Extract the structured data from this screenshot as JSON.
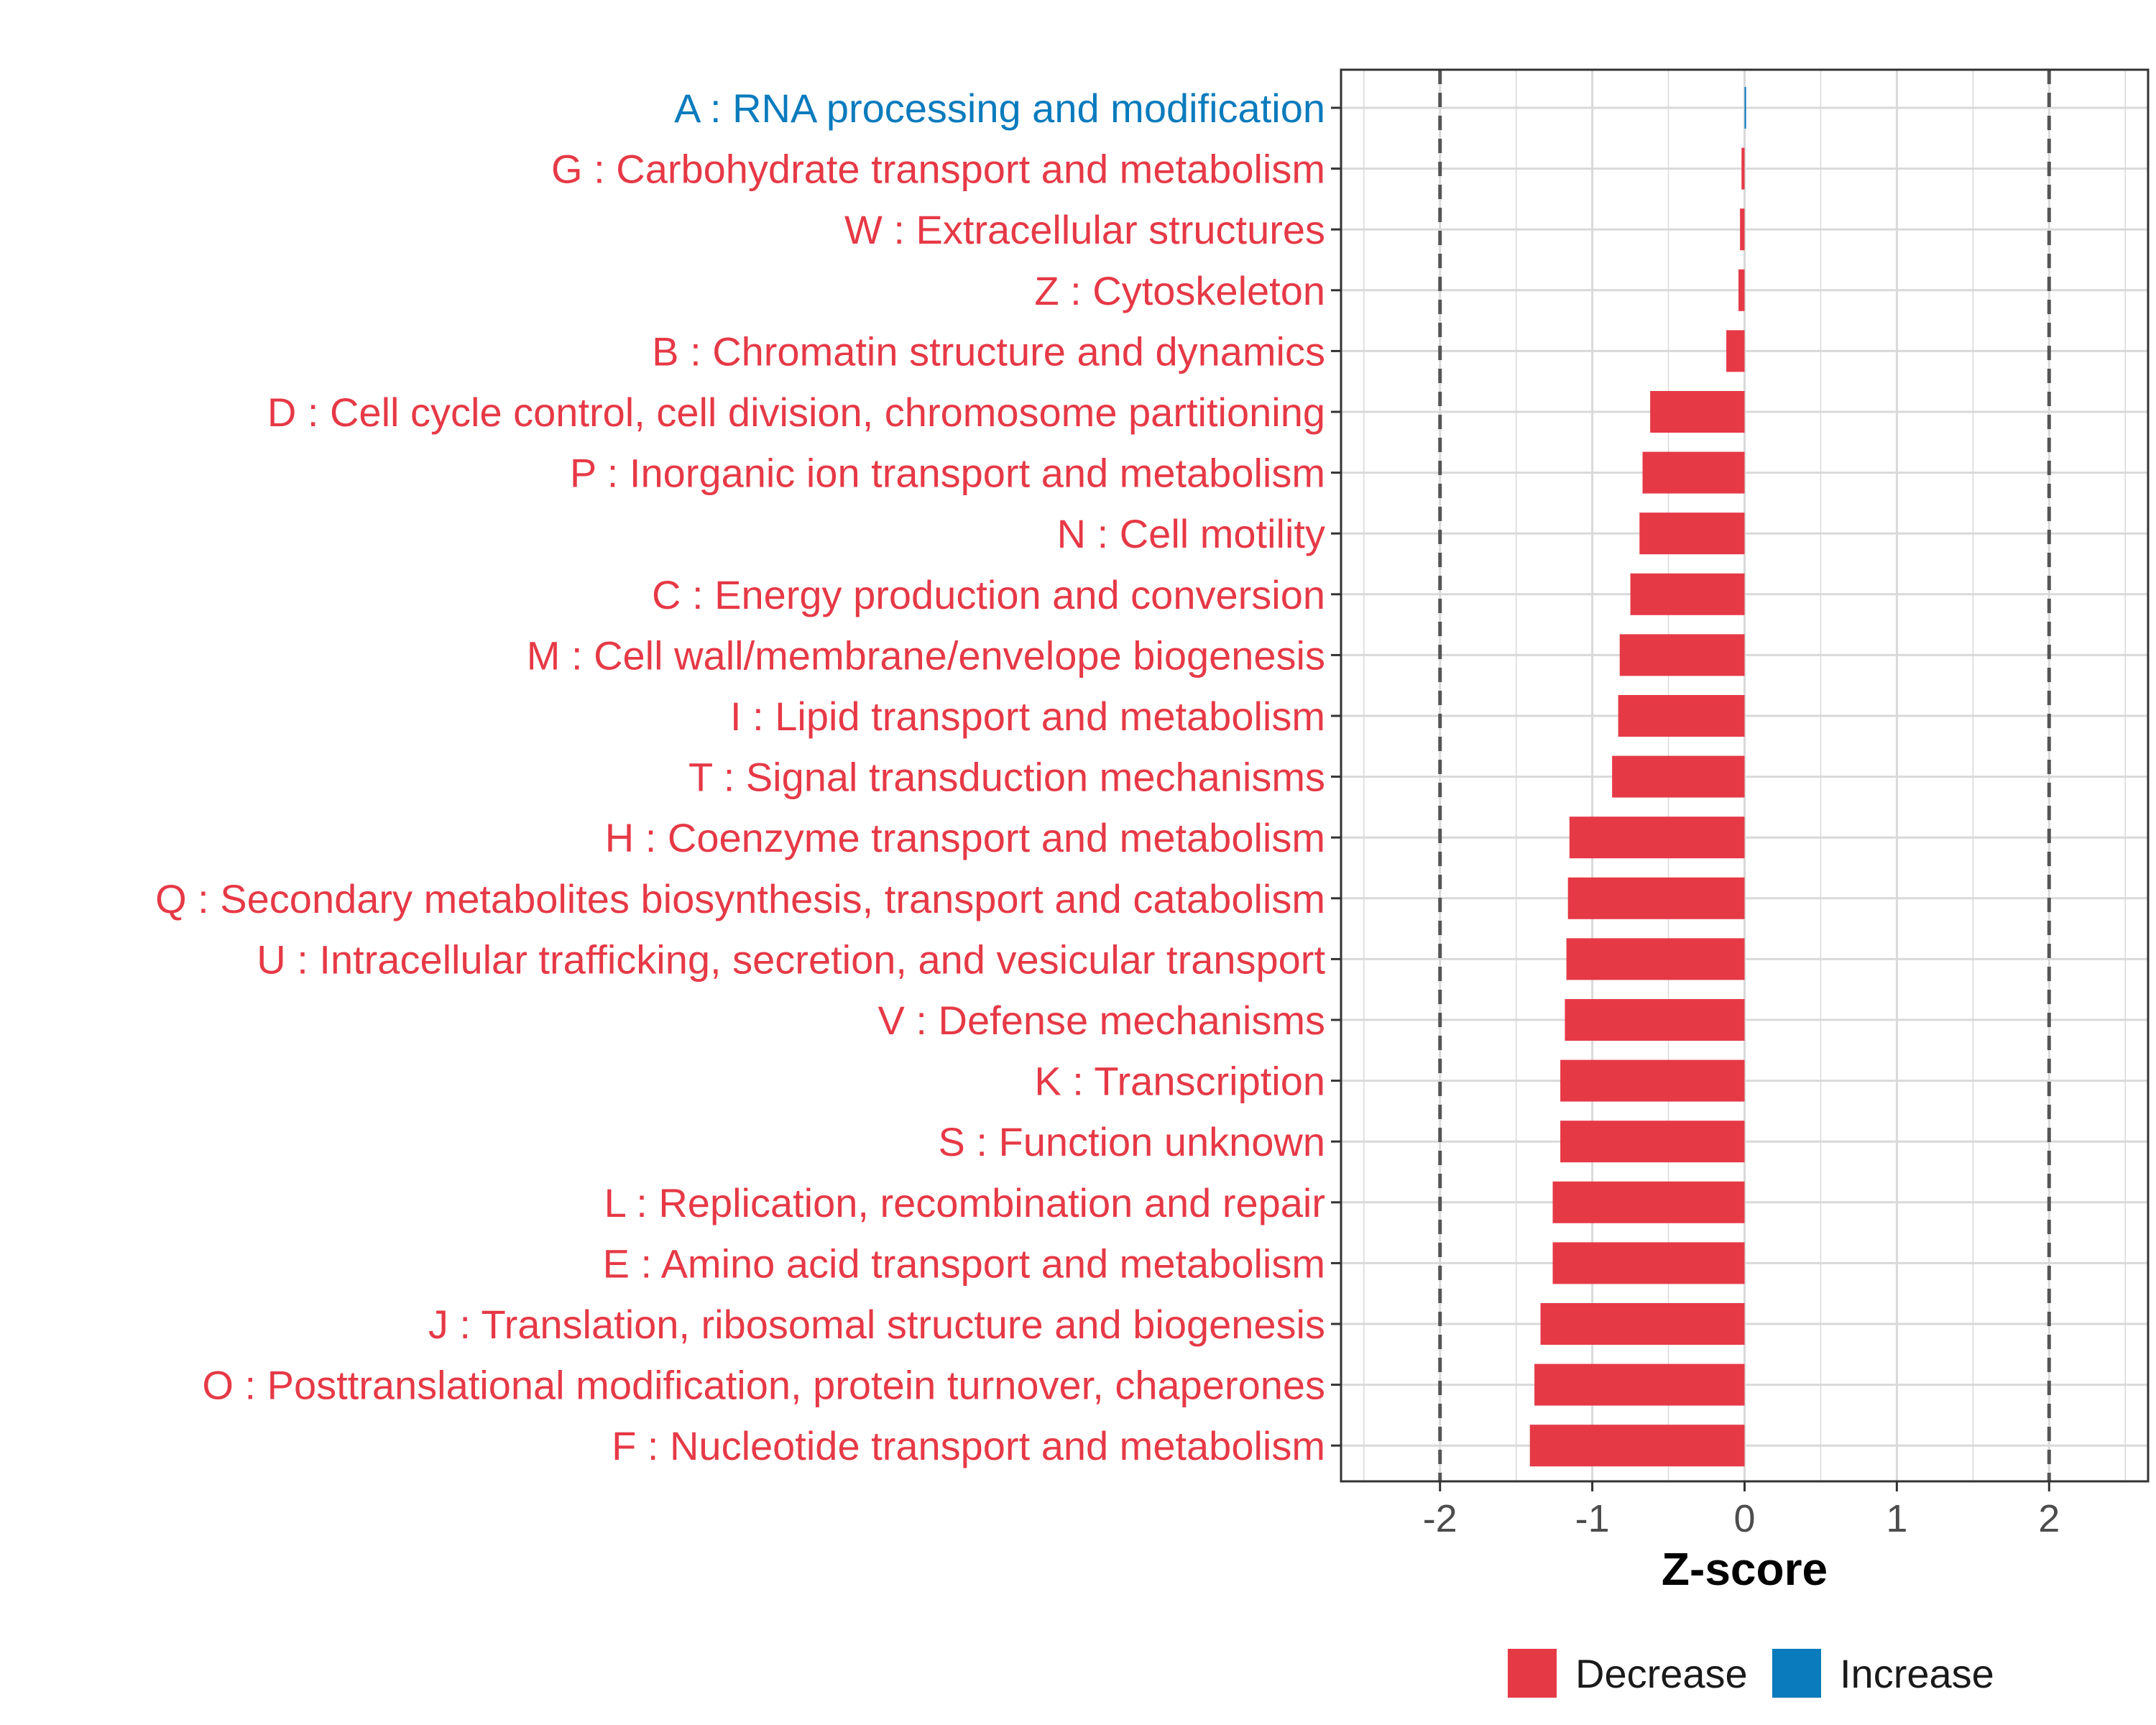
{
  "chart_data": {
    "type": "bar",
    "orientation": "horizontal",
    "xlabel": "Z-score",
    "xlim": [
      -2.65,
      2.65
    ],
    "xticks": [
      -2,
      -1,
      0,
      1,
      2
    ],
    "xtick_labels": [
      "-2",
      "-1",
      "0",
      "1",
      "2"
    ],
    "reference_lines": [
      -2,
      2
    ],
    "grid": true,
    "categories": [
      "A : RNA processing and modification",
      "G : Carbohydrate transport and metabolism",
      "W : Extracellular structures",
      "Z : Cytoskeleton",
      "B : Chromatin structure and dynamics",
      "D : Cell cycle control, cell division, chromosome partitioning",
      "P : Inorganic ion transport and metabolism",
      "N : Cell motility",
      "C : Energy production and conversion",
      "M : Cell wall/membrane/envelope biogenesis",
      "I : Lipid transport and metabolism",
      "T : Signal transduction mechanisms",
      "H : Coenzyme transport and metabolism",
      "Q : Secondary metabolites biosynthesis, transport and catabolism",
      "U : Intracellular trafficking, secretion, and vesicular transport",
      "V : Defense mechanisms",
      "K : Transcription",
      "S : Function unknown",
      "L : Replication, recombination and repair",
      "E : Amino acid transport and metabolism",
      "J : Translation, ribosomal structure and biogenesis",
      "O : Posttranslational modification, protein turnover, chaperones",
      "F : Nucleotide transport and metabolism"
    ],
    "values": [
      0.01,
      -0.02,
      -0.03,
      -0.04,
      -0.12,
      -0.62,
      -0.67,
      -0.69,
      -0.75,
      -0.82,
      -0.83,
      -0.87,
      -1.15,
      -1.16,
      -1.17,
      -1.18,
      -1.21,
      -1.21,
      -1.26,
      -1.26,
      -1.34,
      -1.38,
      -1.41
    ],
    "groups": [
      "Increase",
      "Decrease",
      "Decrease",
      "Decrease",
      "Decrease",
      "Decrease",
      "Decrease",
      "Decrease",
      "Decrease",
      "Decrease",
      "Decrease",
      "Decrease",
      "Decrease",
      "Decrease",
      "Decrease",
      "Decrease",
      "Decrease",
      "Decrease",
      "Decrease",
      "Decrease",
      "Decrease",
      "Decrease",
      "Decrease"
    ],
    "legend": [
      {
        "name": "Decrease",
        "color": "#E63946"
      },
      {
        "name": "Increase",
        "color": "#0A7BBD"
      }
    ],
    "legend_position": "bottom",
    "colors": {
      "decrease": "#E63946",
      "increase": "#0A7BBD",
      "grid": "#d9d9d9",
      "reference_line": "#555555",
      "panel_border": "#333333"
    }
  }
}
